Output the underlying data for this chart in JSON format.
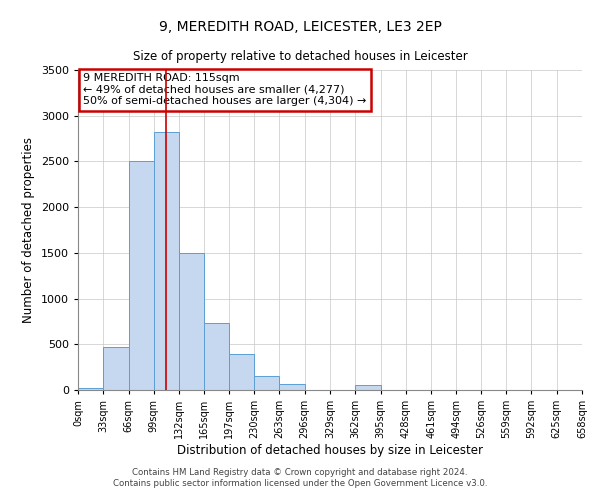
{
  "title": "9, MEREDITH ROAD, LEICESTER, LE3 2EP",
  "subtitle": "Size of property relative to detached houses in Leicester",
  "xlabel": "Distribution of detached houses by size in Leicester",
  "ylabel": "Number of detached properties",
  "bin_edges": [
    0,
    33,
    66,
    99,
    132,
    165,
    197,
    230,
    263,
    296,
    329,
    362,
    395,
    428,
    461,
    494,
    526,
    559,
    592,
    625,
    658
  ],
  "bin_labels": [
    "0sqm",
    "33sqm",
    "66sqm",
    "99sqm",
    "132sqm",
    "165sqm",
    "197sqm",
    "230sqm",
    "263sqm",
    "296sqm",
    "329sqm",
    "362sqm",
    "395sqm",
    "428sqm",
    "461sqm",
    "494sqm",
    "526sqm",
    "559sqm",
    "592sqm",
    "625sqm",
    "658sqm"
  ],
  "bar_heights": [
    20,
    470,
    2500,
    2820,
    1500,
    730,
    390,
    150,
    70,
    0,
    0,
    55,
    0,
    0,
    0,
    0,
    0,
    0,
    0,
    0
  ],
  "bar_color": "#c5d8f0",
  "bar_edge_color": "#5a9fd4",
  "property_line_x": 115,
  "property_line_color": "#cc0000",
  "ylim": [
    0,
    3500
  ],
  "yticks": [
    0,
    500,
    1000,
    1500,
    2000,
    2500,
    3000,
    3500
  ],
  "annotation_box_text": "9 MEREDITH ROAD: 115sqm\n← 49% of detached houses are smaller (4,277)\n50% of semi-detached houses are larger (4,304) →",
  "annotation_box_color": "#cc0000",
  "footer_line1": "Contains HM Land Registry data © Crown copyright and database right 2024.",
  "footer_line2": "Contains public sector information licensed under the Open Government Licence v3.0.",
  "background_color": "#ffffff",
  "grid_color": "#c8c8c8"
}
